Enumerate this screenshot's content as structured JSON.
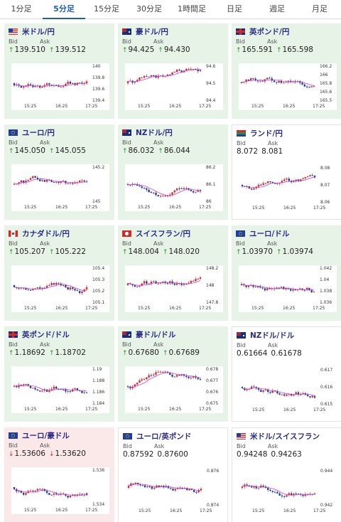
{
  "tabs": [
    "1分足",
    "5分足",
    "15分足",
    "30分足",
    "1時間足",
    "日足",
    "週足",
    "月足"
  ],
  "active_tab": "5分足",
  "labels": {
    "bid": "Bid",
    "ask": "Ask"
  },
  "x_ticks": [
    "15:25",
    "16:25",
    "17:25"
  ],
  "colors": {
    "up_bg": "#e7f3e7",
    "down_bg": "#fbe8e8",
    "candle_up": "#d42a2a",
    "candle_down": "#1f3fa0",
    "ma": "#d040d0"
  },
  "cards": [
    {
      "pair": "米ドル/円",
      "flag": "us-flag",
      "trend": "up",
      "bid": "139.510",
      "ask": "139.512",
      "bid_dir": "up",
      "ask_dir": "up",
      "y_ticks": [
        "140",
        "139.8",
        "139.6",
        "139.4"
      ]
    },
    {
      "pair": "豪ドル/円",
      "flag": "au-flag",
      "trend": "up",
      "bid": "94.425",
      "ask": "94.430",
      "bid_dir": "up",
      "ask_dir": "up",
      "y_ticks": [
        "94.6",
        "94.5",
        "94.4"
      ]
    },
    {
      "pair": "英ポンド/円",
      "flag": "gb-flag",
      "trend": "up",
      "bid": "165.591",
      "ask": "165.598",
      "bid_dir": "up",
      "ask_dir": "up",
      "y_ticks": [
        "166.2",
        "166",
        "165.8",
        "165.6",
        "165.5"
      ]
    },
    {
      "pair": "ユーロ/円",
      "flag": "eu-flag",
      "trend": "up",
      "bid": "145.050",
      "ask": "145.055",
      "bid_dir": "up",
      "ask_dir": "up",
      "y_ticks": [
        "145.2",
        "145"
      ]
    },
    {
      "pair": "NZドル/円",
      "flag": "nz-flag",
      "trend": "up",
      "bid": "86.032",
      "ask": "86.044",
      "bid_dir": "up",
      "ask_dir": "up",
      "y_ticks": [
        "86.2",
        "86.1",
        "86"
      ]
    },
    {
      "pair": "ランド/円",
      "flag": "za-flag",
      "trend": "neutral",
      "bid": "8.072",
      "ask": "8.081",
      "bid_dir": "",
      "ask_dir": "",
      "y_ticks": [
        "8.08",
        "8.07",
        "8.06"
      ]
    },
    {
      "pair": "カナダドル/円",
      "flag": "ca-flag",
      "trend": "up",
      "bid": "105.207",
      "ask": "105.222",
      "bid_dir": "up",
      "ask_dir": "up",
      "y_ticks": [
        "105.4",
        "105.3",
        "105.2",
        "105.1"
      ]
    },
    {
      "pair": "スイスフラン/円",
      "flag": "ch-flag",
      "trend": "up",
      "bid": "148.004",
      "ask": "148.020",
      "bid_dir": "up",
      "ask_dir": "up",
      "y_ticks": [
        "148.2",
        "148",
        "147.8"
      ]
    },
    {
      "pair": "ユーロ/ドル",
      "flag": "eu-flag",
      "trend": "up",
      "bid": "1.03970",
      "ask": "1.03974",
      "bid_dir": "up",
      "ask_dir": "up",
      "y_ticks": [
        "1.042",
        "1.04",
        "1.038",
        "1.036"
      ]
    },
    {
      "pair": "英ポンド/ドル",
      "flag": "gb-flag",
      "trend": "up",
      "bid": "1.18692",
      "ask": "1.18702",
      "bid_dir": "up",
      "ask_dir": "up",
      "y_ticks": [
        "1.19",
        "1.188",
        "1.186",
        "1.184"
      ]
    },
    {
      "pair": "豪ドル/ドル",
      "flag": "au-flag",
      "trend": "up",
      "bid": "0.67680",
      "ask": "0.67689",
      "bid_dir": "up",
      "ask_dir": "up",
      "y_ticks": [
        "0.678",
        "0.677",
        "0.676",
        "0.675"
      ]
    },
    {
      "pair": "NZドル/ドル",
      "flag": "nz-flag",
      "trend": "neutral",
      "bid": "0.61664",
      "ask": "0.61678",
      "bid_dir": "",
      "ask_dir": "",
      "y_ticks": [
        "0.617",
        "0.616",
        "0.615"
      ]
    },
    {
      "pair": "ユーロ/豪ドル",
      "flag": "eu-flag",
      "trend": "down",
      "bid": "1.53606",
      "ask": "1.53620",
      "bid_dir": "down",
      "ask_dir": "down",
      "y_ticks": [
        "1.536",
        "1.534"
      ]
    },
    {
      "pair": "ユーロ/英ポンド",
      "flag": "eu-flag",
      "trend": "neutral",
      "bid": "0.87592",
      "ask": "0.87600",
      "bid_dir": "",
      "ask_dir": "",
      "y_ticks": [
        "0.876",
        "0.874"
      ]
    },
    {
      "pair": "米ドル/スイスフラン",
      "flag": "us-flag",
      "trend": "neutral",
      "bid": "0.94248",
      "ask": "0.94263",
      "bid_dir": "",
      "ask_dir": "",
      "y_ticks": [
        "0.944",
        "0.942"
      ]
    }
  ]
}
